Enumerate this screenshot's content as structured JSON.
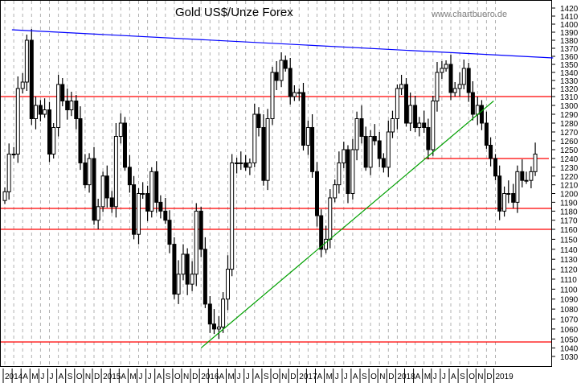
{
  "chart_data": {
    "type": "candlestick",
    "title": "Gold US$/Unze Forex",
    "watermark": "www.chartbuero.de",
    "y_axis": {
      "position": "right",
      "min": 1030,
      "max": 1420,
      "ticks": [
        1030,
        1040,
        1050,
        1060,
        1070,
        1080,
        1090,
        1100,
        1110,
        1120,
        1130,
        1140,
        1150,
        1160,
        1170,
        1180,
        1190,
        1200,
        1210,
        1220,
        1230,
        1240,
        1250,
        1260,
        1270,
        1280,
        1290,
        1300,
        1310,
        1320,
        1330,
        1340,
        1350,
        1360,
        1370,
        1380,
        1390,
        1400,
        1410,
        1420
      ]
    },
    "x_axis": {
      "start": "2014-01",
      "month_labels": [
        "2014",
        "",
        "A",
        "M",
        "J",
        "J",
        "A",
        "S",
        "O",
        "N",
        "D",
        "2015",
        "",
        "A",
        "M",
        "J",
        "J",
        "A",
        "S",
        "O",
        "N",
        "D",
        "2016",
        "",
        "A",
        "M",
        "J",
        "J",
        "A",
        "S",
        "O",
        "N",
        "D",
        "2017",
        "",
        "A",
        "M",
        "J",
        "J",
        "A",
        "S",
        "O",
        "N",
        "D",
        "2018",
        "",
        "A",
        "M",
        "J",
        "J",
        "A",
        "S",
        "O",
        "N",
        "D",
        "2019"
      ]
    },
    "grid": "vertical dashed, monthly",
    "series": [
      [
        "2014-01-01",
        1202
      ],
      [
        "2014-01-15",
        1245
      ],
      [
        "2014-02-01",
        1245
      ],
      [
        "2014-02-15",
        1320
      ],
      [
        "2014-03-01",
        1328
      ],
      [
        "2014-03-15",
        1380
      ],
      [
        "2014-04-01",
        1285
      ],
      [
        "2014-04-15",
        1300
      ],
      [
        "2014-05-01",
        1290
      ],
      [
        "2014-05-15",
        1295
      ],
      [
        "2014-06-01",
        1245
      ],
      [
        "2014-06-15",
        1275
      ],
      [
        "2014-07-01",
        1325
      ],
      [
        "2014-07-15",
        1305
      ],
      [
        "2014-08-01",
        1295
      ],
      [
        "2014-08-15",
        1305
      ],
      [
        "2014-09-01",
        1285
      ],
      [
        "2014-09-15",
        1235
      ],
      [
        "2014-10-01",
        1210
      ],
      [
        "2014-10-15",
        1240
      ],
      [
        "2014-11-01",
        1170
      ],
      [
        "2014-11-15",
        1185
      ],
      [
        "2014-12-01",
        1220
      ],
      [
        "2014-12-15",
        1195
      ],
      [
        "2015-01-01",
        1185
      ],
      [
        "2015-01-15",
        1265
      ],
      [
        "2015-02-01",
        1280
      ],
      [
        "2015-02-15",
        1230
      ],
      [
        "2015-03-01",
        1210
      ],
      [
        "2015-03-15",
        1155
      ],
      [
        "2015-04-01",
        1200
      ],
      [
        "2015-04-15",
        1200
      ],
      [
        "2015-05-01",
        1180
      ],
      [
        "2015-05-15",
        1225
      ],
      [
        "2015-06-01",
        1190
      ],
      [
        "2015-06-15",
        1180
      ],
      [
        "2015-07-01",
        1170
      ],
      [
        "2015-07-15",
        1145
      ],
      [
        "2015-08-01",
        1095
      ],
      [
        "2015-08-15",
        1115
      ],
      [
        "2015-09-01",
        1135
      ],
      [
        "2015-09-15",
        1105
      ],
      [
        "2015-10-01",
        1115
      ],
      [
        "2015-10-15",
        1180
      ],
      [
        "2015-11-01",
        1140
      ],
      [
        "2015-11-15",
        1085
      ],
      [
        "2015-12-01",
        1065
      ],
      [
        "2015-12-15",
        1060
      ],
      [
        "2016-01-01",
        1062
      ],
      [
        "2016-01-15",
        1090
      ],
      [
        "2016-02-01",
        1120
      ],
      [
        "2016-02-15",
        1235
      ],
      [
        "2016-03-01",
        1235
      ],
      [
        "2016-03-15",
        1235
      ],
      [
        "2016-04-01",
        1230
      ],
      [
        "2016-04-15",
        1235
      ],
      [
        "2016-05-01",
        1290
      ],
      [
        "2016-05-15",
        1275
      ],
      [
        "2016-06-01",
        1215
      ],
      [
        "2016-06-15",
        1285
      ],
      [
        "2016-07-01",
        1340
      ],
      [
        "2016-07-15",
        1330
      ],
      [
        "2016-08-01",
        1355
      ],
      [
        "2016-08-15",
        1345
      ],
      [
        "2016-09-01",
        1310
      ],
      [
        "2016-09-15",
        1315
      ],
      [
        "2016-10-01",
        1315
      ],
      [
        "2016-10-15",
        1255
      ],
      [
        "2016-11-01",
        1275
      ],
      [
        "2016-11-15",
        1225
      ],
      [
        "2016-12-01",
        1175
      ],
      [
        "2016-12-15",
        1140
      ],
      [
        "2017-01-01",
        1150
      ],
      [
        "2017-01-15",
        1195
      ],
      [
        "2017-02-01",
        1210
      ],
      [
        "2017-02-15",
        1235
      ],
      [
        "2017-03-01",
        1250
      ],
      [
        "2017-03-15",
        1200
      ],
      [
        "2017-04-01",
        1250
      ],
      [
        "2017-04-15",
        1285
      ],
      [
        "2017-05-01",
        1265
      ],
      [
        "2017-05-15",
        1230
      ],
      [
        "2017-06-01",
        1265
      ],
      [
        "2017-06-15",
        1260
      ],
      [
        "2017-07-01",
        1240
      ],
      [
        "2017-07-15",
        1230
      ],
      [
        "2017-08-01",
        1270
      ],
      [
        "2017-08-15",
        1285
      ],
      [
        "2017-09-01",
        1320
      ],
      [
        "2017-09-15",
        1325
      ],
      [
        "2017-10-01",
        1280
      ],
      [
        "2017-10-15",
        1300
      ],
      [
        "2017-11-01",
        1275
      ],
      [
        "2017-11-15",
        1280
      ],
      [
        "2017-12-01",
        1275
      ],
      [
        "2017-12-15",
        1250
      ],
      [
        "2018-01-01",
        1305
      ],
      [
        "2018-01-15",
        1340
      ],
      [
        "2018-02-01",
        1345
      ],
      [
        "2018-02-15",
        1350
      ],
      [
        "2018-03-01",
        1315
      ],
      [
        "2018-03-15",
        1320
      ],
      [
        "2018-04-01",
        1325
      ],
      [
        "2018-04-15",
        1345
      ],
      [
        "2018-05-01",
        1315
      ],
      [
        "2018-05-15",
        1290
      ],
      [
        "2018-06-01",
        1300
      ],
      [
        "2018-06-15",
        1280
      ],
      [
        "2018-07-01",
        1255
      ],
      [
        "2018-07-15",
        1240
      ],
      [
        "2018-08-01",
        1220
      ],
      [
        "2018-08-15",
        1180
      ],
      [
        "2018-09-01",
        1200
      ],
      [
        "2018-09-15",
        1200
      ],
      [
        "2018-10-01",
        1190
      ],
      [
        "2018-10-15",
        1225
      ],
      [
        "2018-11-01",
        1215
      ],
      [
        "2018-11-15",
        1215
      ],
      [
        "2018-12-01",
        1225
      ],
      [
        "2018-12-15",
        1245
      ]
    ],
    "trendlines": [
      {
        "color": "#0000ff",
        "from": [
          "2014-01-25",
          1393
        ],
        "to": [
          "2019-02-15",
          1358
        ]
      },
      {
        "color": "#00a000",
        "from": [
          "2015-11-01",
          1040
        ],
        "to": [
          "2018-07-25",
          1305
        ]
      }
    ],
    "horizontal_lines": [
      {
        "color": "#ff0000",
        "value": 1310
      },
      {
        "color": "#ff0000",
        "value": 1240,
        "from": "2017-12-01"
      },
      {
        "color": "#ff0000",
        "value": 1183
      },
      {
        "color": "#ff0000",
        "value": 1160
      },
      {
        "color": "#ff0000",
        "value": 1047
      }
    ]
  }
}
